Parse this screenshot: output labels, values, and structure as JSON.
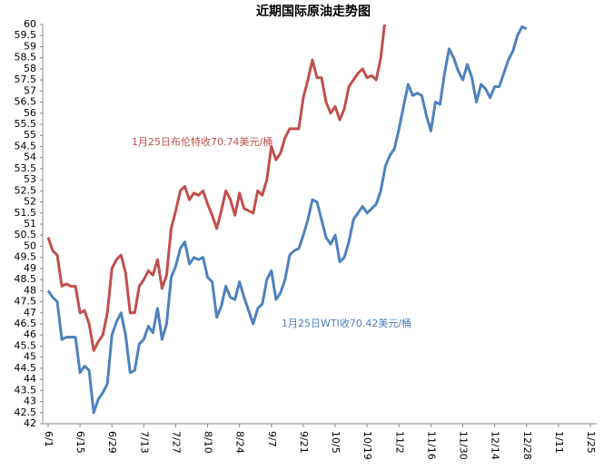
{
  "chart_data": {
    "type": "line",
    "title": "近期国际原油走势图",
    "annotations": [
      {
        "text": "1月25日布伦特收70.74美元/桶",
        "color": "#c0504d"
      },
      {
        "text": "1月25日WTI收70.42美元/桶",
        "color": "#4f81bd"
      }
    ],
    "categories": [
      "6/1",
      null,
      null,
      null,
      null,
      null,
      null,
      "6/15",
      null,
      null,
      null,
      null,
      null,
      null,
      "6/29",
      null,
      null,
      null,
      null,
      null,
      null,
      "7/13",
      null,
      null,
      null,
      null,
      null,
      null,
      "7/27",
      null,
      null,
      null,
      null,
      null,
      null,
      "8/10",
      null,
      null,
      null,
      null,
      null,
      null,
      "8/24",
      null,
      null,
      null,
      null,
      null,
      null,
      "9/7",
      null,
      null,
      null,
      null,
      null,
      null,
      "9/21",
      null,
      null,
      null,
      null,
      null,
      null,
      "10/5",
      null,
      null,
      null,
      null,
      null,
      null,
      "10/19",
      null,
      null,
      null,
      null,
      null,
      null,
      "11/2",
      null,
      null,
      null,
      null,
      null,
      null,
      "11/16",
      null,
      null,
      null,
      null,
      null,
      null,
      "11/30",
      null,
      null,
      null,
      null,
      null,
      null,
      "12/14",
      null,
      null,
      null,
      null,
      null,
      null,
      "12/28",
      null,
      null,
      null,
      null,
      null,
      null,
      "1/11",
      null,
      null,
      null,
      null,
      null,
      null,
      "1/25"
    ],
    "series": [
      {
        "color": "#c0504d",
        "values": [
          50.4,
          49.8,
          49.6,
          48.2,
          48.3,
          48.2,
          48.2,
          47,
          47.1,
          46.5,
          45.3,
          45.7,
          46,
          47,
          49,
          49.4,
          49.6,
          48.8,
          47,
          47,
          48.2,
          48.5,
          48.9,
          48.7,
          49.4,
          48.1,
          48.7,
          50.8,
          51.6,
          52.5,
          52.7,
          52.1,
          52.4,
          52.3,
          52.5,
          51.9,
          51.4,
          50.8,
          51.6,
          52.5,
          52.1,
          51.4,
          52.4,
          51.7,
          51.6,
          51.5,
          52.5,
          52.3,
          53,
          54.5,
          53.9,
          54.2,
          54.9,
          55.3,
          55.3,
          55.3,
          56.7,
          57.5,
          58.4,
          57.6,
          57.6,
          56.5,
          56,
          56.3,
          55.7,
          56.2,
          57.2,
          57.5,
          57.8,
          58,
          57.6,
          57.7,
          57.5,
          58.5,
          60.3,
          null,
          null,
          null,
          null,
          null,
          null,
          null,
          null,
          null,
          null,
          null,
          null,
          null,
          null,
          null,
          null,
          null,
          null,
          null,
          null,
          null,
          null,
          null,
          null,
          null,
          null,
          null,
          null,
          null,
          null,
          null,
          null,
          null,
          null,
          null,
          null,
          null,
          null,
          null,
          null,
          null,
          null,
          null,
          null,
          null
        ]
      },
      {
        "color": "#4f81bd",
        "values": [
          48,
          47.7,
          47.5,
          45.8,
          45.9,
          45.9,
          45.9,
          44.3,
          44.6,
          44.4,
          42.5,
          43.1,
          43.4,
          43.8,
          46,
          46.6,
          47,
          46,
          44.3,
          44.4,
          45.6,
          45.8,
          46.4,
          46.1,
          47.2,
          45.8,
          46.5,
          48.6,
          49.1,
          49.9,
          50.2,
          49.2,
          49.5,
          49.4,
          49.5,
          48.6,
          48.4,
          46.8,
          47.3,
          48.2,
          47.7,
          47.6,
          48.4,
          47.7,
          47.1,
          46.5,
          47.2,
          47.4,
          48.5,
          48.9,
          47.6,
          47.9,
          48.5,
          49.6,
          49.8,
          49.9,
          50.5,
          51.2,
          52.1,
          52,
          51.2,
          50.4,
          50.1,
          50.5,
          49.3,
          49.5,
          50.2,
          51.2,
          51.5,
          51.8,
          51.5,
          51.7,
          51.9,
          52.5,
          53.6,
          54.1,
          54.4,
          55.3,
          56.3,
          57.3,
          56.8,
          56.9,
          56.8,
          55.9,
          55.2,
          56.5,
          56.4,
          57.8,
          58.9,
          58.5,
          57.9,
          57.5,
          58.2,
          57.6,
          56.5,
          57.3,
          57.1,
          56.7,
          57.2,
          57.2,
          57.8,
          58.4,
          58.8,
          59.5,
          59.9,
          59.8,
          null,
          null,
          null,
          null,
          null,
          null,
          null,
          null,
          null,
          null,
          null,
          null,
          null,
          null
        ]
      }
    ],
    "ylim": [
      42,
      60
    ],
    "yticks": [
      42,
      42.5,
      43,
      43.5,
      44,
      44.5,
      45,
      45.5,
      46,
      46.5,
      47,
      47.5,
      48,
      48.5,
      49,
      49.5,
      50,
      50.5,
      51,
      51.5,
      52,
      52.5,
      53,
      53.5,
      54,
      54.5,
      55,
      55.5,
      56,
      56.5,
      57,
      57.5,
      58,
      58.5,
      59,
      59.5,
      60
    ]
  }
}
